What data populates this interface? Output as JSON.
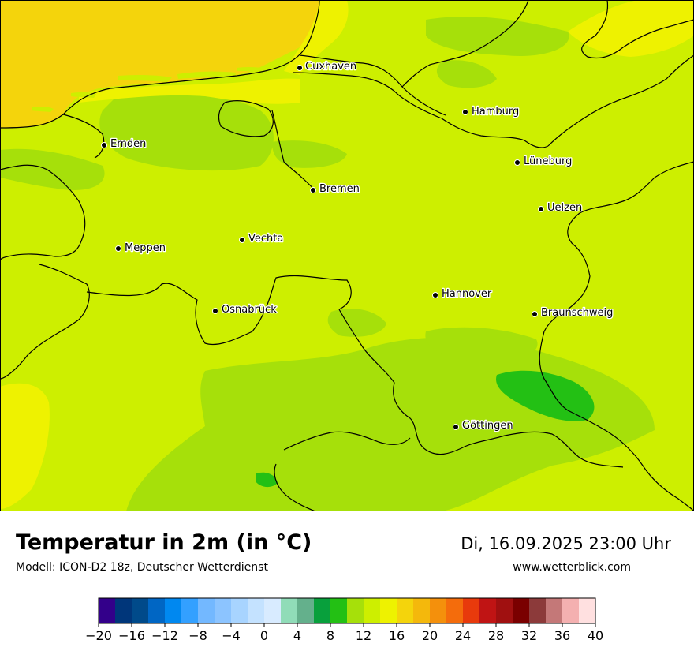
{
  "map": {
    "title": "Temperatur in 2m (in °C)",
    "model": "Modell: ICON-D2 18z, Deutscher Wetterdienst",
    "datetime": "Di, 16.09.2025 23:00 Uhr",
    "website": "www.wetterblick.com",
    "colors": {
      "sea": "#f4d40c",
      "t16": "#eef200",
      "t14": "#cdef00",
      "t12": "#a6e00a",
      "t10": "#23c014",
      "border": "#000000"
    },
    "cities": [
      {
        "name": "Cuxhaven",
        "label": "Cuxhaven"
      },
      {
        "name": "Hamburg",
        "label": "Hamburg"
      },
      {
        "name": "Emden",
        "label": "Emden"
      },
      {
        "name": "Lüneburg",
        "label": "Lüneburg"
      },
      {
        "name": "Bremen",
        "label": "Bremen"
      },
      {
        "name": "Uelzen",
        "label": "Uelzen"
      },
      {
        "name": "Vechta",
        "label": "Vechta"
      },
      {
        "name": "Meppen",
        "label": "Meppen"
      },
      {
        "name": "Hannover",
        "label": "Hannover"
      },
      {
        "name": "Osnabrück",
        "label": "Osnabrück"
      },
      {
        "name": "Braunschweig",
        "label": "Braunschweig"
      },
      {
        "name": "Göttingen",
        "label": "Göttingen"
      }
    ]
  },
  "legend": {
    "colors": [
      "#33008a",
      "#00367a",
      "#004a8a",
      "#0066c4",
      "#0088f0",
      "#33a0ff",
      "#73b8ff",
      "#8cc4ff",
      "#a8d4ff",
      "#c4e2ff",
      "#d8ebff",
      "#90dcb8",
      "#64b08c",
      "#08a03c",
      "#23c014",
      "#a6e00a",
      "#cdef00",
      "#eef200",
      "#f4d40c",
      "#f4b80c",
      "#f4900c",
      "#f46c0c",
      "#e83a0c",
      "#c01414",
      "#a01010",
      "#7a0000",
      "#8c3a3a",
      "#c47878",
      "#f4b0b0",
      "#ffe0e0"
    ],
    "ticks": [
      "−20",
      "−16",
      "−12",
      "−8",
      "−4",
      "0",
      "4",
      "8",
      "12",
      "16",
      "20",
      "24",
      "28",
      "32",
      "36",
      "40"
    ]
  }
}
